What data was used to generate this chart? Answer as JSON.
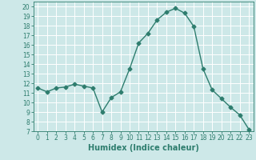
{
  "x": [
    0,
    1,
    2,
    3,
    4,
    5,
    6,
    7,
    8,
    9,
    10,
    11,
    12,
    13,
    14,
    15,
    16,
    17,
    18,
    19,
    20,
    21,
    22,
    23
  ],
  "y": [
    11.5,
    11.1,
    11.5,
    11.6,
    11.9,
    11.7,
    11.5,
    9.0,
    10.5,
    11.1,
    13.5,
    16.2,
    17.2,
    18.6,
    19.4,
    19.8,
    19.3,
    17.9,
    13.5,
    11.3,
    10.4,
    9.5,
    8.7,
    7.2
  ],
  "line_color": "#2e7d6e",
  "marker": "D",
  "marker_size": 2.5,
  "bg_color": "#cde8e8",
  "grid_color": "#b0d4d4",
  "xlabel": "Humidex (Indice chaleur)",
  "xlim": [
    -0.5,
    23.5
  ],
  "ylim": [
    7,
    20.5
  ],
  "yticks": [
    7,
    8,
    9,
    10,
    11,
    12,
    13,
    14,
    15,
    16,
    17,
    18,
    19,
    20
  ],
  "xticks": [
    0,
    1,
    2,
    3,
    4,
    5,
    6,
    7,
    8,
    9,
    10,
    11,
    12,
    13,
    14,
    15,
    16,
    17,
    18,
    19,
    20,
    21,
    22,
    23
  ],
  "tick_fontsize": 5.5,
  "xlabel_fontsize": 7.0,
  "line_width": 1.0
}
